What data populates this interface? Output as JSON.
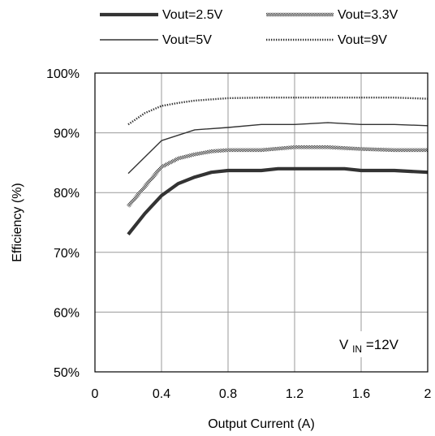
{
  "chart_data": {
    "type": "line",
    "title": "",
    "xlabel": "Output Current (A)",
    "ylabel": "Efficiency (%)",
    "xlim": [
      0,
      2
    ],
    "ylim": [
      50,
      100
    ],
    "x_ticks": [
      0,
      0.4,
      0.8,
      1.2,
      1.6,
      2
    ],
    "x_tick_labels": [
      "0",
      "0.4",
      "0.8",
      "1.2",
      "1.6",
      "2"
    ],
    "y_ticks": [
      50,
      60,
      70,
      80,
      90,
      100
    ],
    "y_tick_labels": [
      "50%",
      "60%",
      "70%",
      "80%",
      "90%",
      "100%"
    ],
    "grid": true,
    "legend_position": "top",
    "annotation": {
      "main": "V",
      "sub": "IN",
      "rest": "=12V"
    },
    "series": [
      {
        "name": "Vout=2.5V",
        "style": "thick",
        "color": "#333333",
        "x": [
          0.2,
          0.3,
          0.4,
          0.5,
          0.6,
          0.7,
          0.8,
          1.0,
          1.1,
          1.2,
          1.4,
          1.5,
          1.6,
          1.8,
          2.0
        ],
        "values": [
          73.0,
          76.5,
          79.5,
          81.5,
          82.6,
          83.4,
          83.7,
          83.7,
          84.0,
          84.0,
          84.0,
          84.0,
          83.7,
          83.7,
          83.4
        ]
      },
      {
        "name": "Vout=3.3V",
        "style": "checkered",
        "color": "#333333",
        "x": [
          0.2,
          0.3,
          0.4,
          0.5,
          0.6,
          0.7,
          0.8,
          1.0,
          1.2,
          1.4,
          1.6,
          1.8,
          2.0
        ],
        "values": [
          77.7,
          81.0,
          84.3,
          85.7,
          86.4,
          86.9,
          87.1,
          87.1,
          87.6,
          87.6,
          87.3,
          87.1,
          87.1
        ]
      },
      {
        "name": "Vout=5V",
        "style": "thin",
        "color": "#333333",
        "x": [
          0.2,
          0.4,
          0.6,
          0.8,
          1.0,
          1.2,
          1.4,
          1.6,
          1.8,
          2.0
        ],
        "values": [
          83.2,
          88.7,
          90.5,
          90.9,
          91.4,
          91.4,
          91.7,
          91.4,
          91.4,
          91.2
        ]
      },
      {
        "name": "Vout=9V",
        "style": "dotted",
        "color": "#333333",
        "x": [
          0.2,
          0.3,
          0.4,
          0.5,
          0.6,
          0.8,
          1.0,
          1.2,
          1.4,
          1.6,
          1.8,
          2.0
        ],
        "values": [
          91.4,
          93.3,
          94.5,
          95.0,
          95.4,
          95.8,
          95.9,
          95.9,
          95.9,
          95.9,
          95.9,
          95.7
        ]
      }
    ]
  }
}
